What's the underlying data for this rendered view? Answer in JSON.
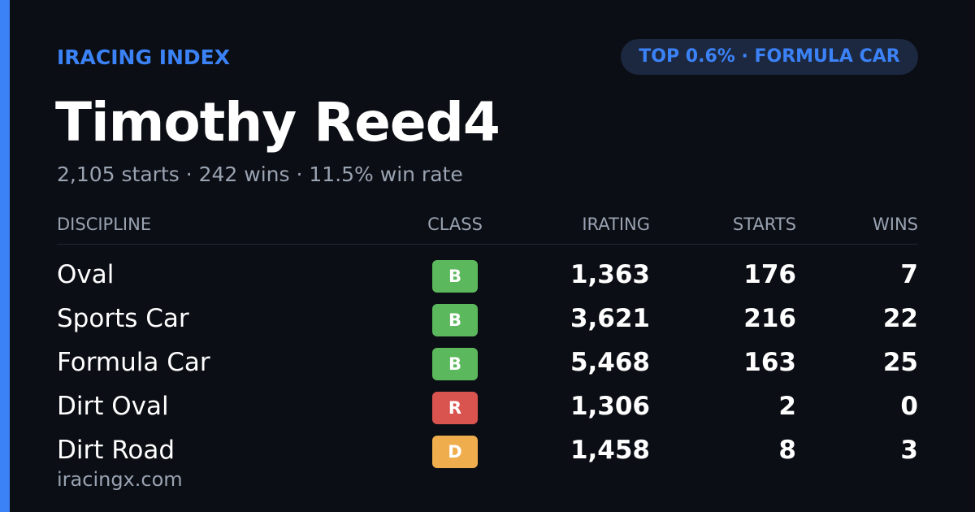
{
  "header": {
    "brand": "IRACING INDEX",
    "badge": "TOP 0.6% · FORMULA CAR"
  },
  "profile": {
    "name": "Timothy Reed4",
    "summary": "2,105 starts · 242 wins · 11.5% win rate"
  },
  "table": {
    "columns": [
      "DISCIPLINE",
      "CLASS",
      "IRATING",
      "STARTS",
      "WINS"
    ],
    "rows": [
      [
        "Oval",
        "B",
        "1,363",
        "176",
        "7"
      ],
      [
        "Sports Car",
        "B",
        "3,621",
        "216",
        "22"
      ],
      [
        "Formula Car",
        "B",
        "5,468",
        "163",
        "25"
      ],
      [
        "Dirt Oval",
        "R",
        "1,306",
        "2",
        "0"
      ],
      [
        "Dirt Road",
        "D",
        "1,458",
        "8",
        "3"
      ]
    ],
    "class_colors": {
      "B": "#5cb85c",
      "R": "#d9534f",
      "D": "#f0ad4e"
    }
  },
  "footer": {
    "url": "iracingx.com"
  }
}
